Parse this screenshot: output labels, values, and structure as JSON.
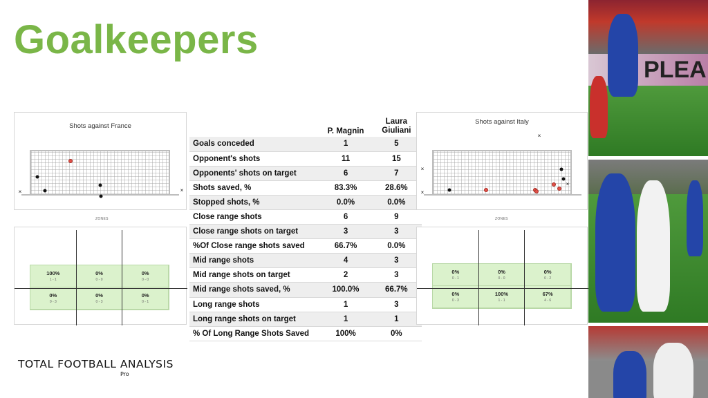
{
  "title": "Goalkeepers",
  "france_map": {
    "title": "Shots against France"
  },
  "italy_map": {
    "title": "Shots against Italy"
  },
  "zones_label": "ZONES",
  "france_zones": [
    {
      "pct": "100%",
      "cnt": "1 - 1"
    },
    {
      "pct": "0%",
      "cnt": "0 - 0"
    },
    {
      "pct": "0%",
      "cnt": "0 - 0"
    },
    {
      "pct": "0%",
      "cnt": "0 - 3"
    },
    {
      "pct": "0%",
      "cnt": "0 - 3"
    },
    {
      "pct": "0%",
      "cnt": "0 - 1"
    }
  ],
  "italy_zones": [
    {
      "pct": "0%",
      "cnt": "0 - 1"
    },
    {
      "pct": "0%",
      "cnt": "0 - 0"
    },
    {
      "pct": "0%",
      "cnt": "0 - 2"
    },
    {
      "pct": "0%",
      "cnt": "0 - 3"
    },
    {
      "pct": "100%",
      "cnt": "1 - 1"
    },
    {
      "pct": "67%",
      "cnt": "4 - 6"
    }
  ],
  "table": {
    "col1": "P. Magnin",
    "col2": "Laura Giuliani",
    "rows": [
      {
        "label": "Goals conceded",
        "a": "1",
        "b": "5"
      },
      {
        "label": "Opponent's shots",
        "a": "11",
        "b": "15"
      },
      {
        "label": "Opponents' shots  on target",
        "a": "6",
        "b": "7"
      },
      {
        "label": "Shots saved, %",
        "a": "83.3%",
        "b": "28.6%"
      },
      {
        "label": "Stopped shots, %",
        "a": "0.0%",
        "b": "0.0%"
      },
      {
        "label": "Close range shots",
        "a": "6",
        "b": "9"
      },
      {
        "label": "Close range shots on target",
        "a": "3",
        "b": "3"
      },
      {
        "label": "%Of Close range shots saved",
        "a": "66.7%",
        "b": "0.0%"
      },
      {
        "label": "Mid range shots",
        "a": "4",
        "b": "3"
      },
      {
        "label": "Mid range shots on target",
        "a": "2",
        "b": "3"
      },
      {
        "label": "Mid range shots saved, %",
        "a": "100.0%",
        "b": "66.7%"
      },
      {
        "label": "Long range shots",
        "a": "1",
        "b": "3"
      },
      {
        "label": "Long range shots on target",
        "a": "1",
        "b": "1"
      },
      {
        "label": "% Of Long Range Shots Saved",
        "a": "100%",
        "b": "0%"
      }
    ]
  },
  "logo": {
    "text": "TOTAL FOOTBALL ANALYSIS",
    "sub": "Pro"
  },
  "photo1": {
    "banner": "PLEA"
  },
  "colors": {
    "accent": "#7ab648",
    "goal_shot": "#e0524a",
    "zone_fill": "#dbf2cc"
  }
}
